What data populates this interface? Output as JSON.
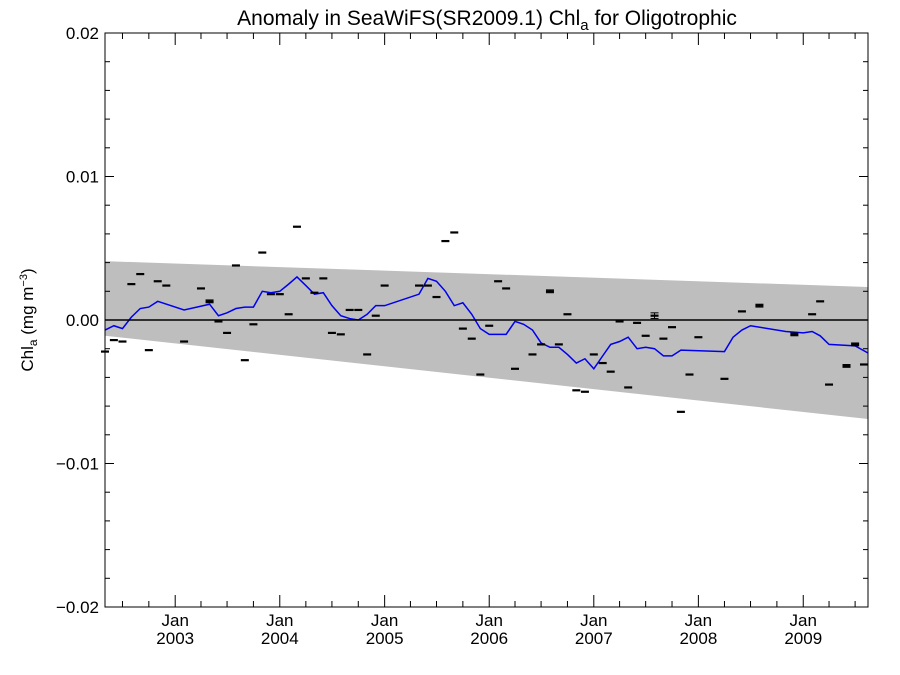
{
  "chart_data": {
    "type": "scatter",
    "title": {
      "prefix": "Anomaly in SeaWiFS(SR2009.1) Chl",
      "subscript": "a",
      "suffix": " for Oligotrophic"
    },
    "ylabel": {
      "main": "Chl",
      "subscript": "a",
      "units": " (mg m",
      "superscript": "−3",
      "close": ")"
    },
    "xlim": [
      "2002-05-01",
      "2009-08-15"
    ],
    "ylim": [
      -0.02,
      0.02
    ],
    "x_ticks": [
      {
        "month": "Jan",
        "year": "2003",
        "date": "2003-01-01"
      },
      {
        "month": "Jan",
        "year": "2004",
        "date": "2004-01-01"
      },
      {
        "month": "Jan",
        "year": "2005",
        "date": "2005-01-01"
      },
      {
        "month": "Jan",
        "year": "2006",
        "date": "2006-01-01"
      },
      {
        "month": "Jan",
        "year": "2007",
        "date": "2007-01-01"
      },
      {
        "month": "Jan",
        "year": "2008",
        "date": "2008-01-01"
      },
      {
        "month": "Jan",
        "year": "2009",
        "date": "2009-01-01"
      }
    ],
    "y_ticks": [
      {
        "label": "0.02",
        "value": 0.02
      },
      {
        "label": "0.01",
        "value": 0.01
      },
      {
        "label": "0.00",
        "value": 0.0
      },
      {
        "label": "−0.01",
        "value": -0.01
      },
      {
        "label": "−0.02",
        "value": -0.02
      }
    ],
    "zero_line": 0.0,
    "band": {
      "color": "#bebebe",
      "upper": [
        {
          "x": "2002-05-01",
          "y": 0.0041
        },
        {
          "x": "2009-08-15",
          "y": 0.0023
        }
      ],
      "lower": [
        {
          "x": "2002-05-01",
          "y": -0.0011
        },
        {
          "x": "2009-08-15",
          "y": -0.0069
        }
      ]
    },
    "line": {
      "color": "#0000ee",
      "points": [
        {
          "x": "2002-05-01",
          "y": -0.0007
        },
        {
          "x": "2002-06-01",
          "y": -0.0004
        },
        {
          "x": "2002-07-01",
          "y": -0.0006
        },
        {
          "x": "2002-08-01",
          "y": 0.0002
        },
        {
          "x": "2002-09-01",
          "y": 0.0008
        },
        {
          "x": "2002-10-01",
          "y": 0.0009
        },
        {
          "x": "2002-11-01",
          "y": 0.0013
        },
        {
          "x": "2003-02-01",
          "y": 0.0007
        },
        {
          "x": "2003-05-01",
          "y": 0.0011
        },
        {
          "x": "2003-06-01",
          "y": 0.0003
        },
        {
          "x": "2003-07-01",
          "y": 0.0005
        },
        {
          "x": "2003-08-01",
          "y": 0.0008
        },
        {
          "x": "2003-09-01",
          "y": 0.0009
        },
        {
          "x": "2003-10-01",
          "y": 0.0009
        },
        {
          "x": "2003-11-01",
          "y": 0.002
        },
        {
          "x": "2003-12-01",
          "y": 0.0019
        },
        {
          "x": "2004-01-01",
          "y": 0.002
        },
        {
          "x": "2004-02-01",
          "y": 0.0025
        },
        {
          "x": "2004-03-01",
          "y": 0.003
        },
        {
          "x": "2004-04-01",
          "y": 0.0024
        },
        {
          "x": "2004-05-01",
          "y": 0.0018
        },
        {
          "x": "2004-06-01",
          "y": 0.0019
        },
        {
          "x": "2004-07-01",
          "y": 0.001
        },
        {
          "x": "2004-08-01",
          "y": 0.0003
        },
        {
          "x": "2004-09-01",
          "y": 0.0001
        },
        {
          "x": "2004-10-01",
          "y": 0.0
        },
        {
          "x": "2004-11-01",
          "y": 0.0004
        },
        {
          "x": "2004-12-01",
          "y": 0.001
        },
        {
          "x": "2005-01-01",
          "y": 0.001
        },
        {
          "x": "2005-05-01",
          "y": 0.0018
        },
        {
          "x": "2005-06-01",
          "y": 0.0029
        },
        {
          "x": "2005-07-01",
          "y": 0.0027
        },
        {
          "x": "2005-08-01",
          "y": 0.002
        },
        {
          "x": "2005-09-01",
          "y": 0.001
        },
        {
          "x": "2005-10-01",
          "y": 0.0012
        },
        {
          "x": "2005-11-01",
          "y": 0.0004
        },
        {
          "x": "2005-12-01",
          "y": -0.0006
        },
        {
          "x": "2006-01-01",
          "y": -0.001
        },
        {
          "x": "2006-02-01",
          "y": -0.001
        },
        {
          "x": "2006-03-01",
          "y": -0.001
        },
        {
          "x": "2006-04-01",
          "y": -0.0001
        },
        {
          "x": "2006-05-01",
          "y": -0.0003
        },
        {
          "x": "2006-06-01",
          "y": -0.0007
        },
        {
          "x": "2006-07-01",
          "y": -0.0016
        },
        {
          "x": "2006-08-01",
          "y": -0.0019
        },
        {
          "x": "2006-09-01",
          "y": -0.0019
        },
        {
          "x": "2006-10-01",
          "y": -0.0024
        },
        {
          "x": "2006-11-01",
          "y": -0.003
        },
        {
          "x": "2006-12-01",
          "y": -0.0027
        },
        {
          "x": "2007-01-01",
          "y": -0.0034
        },
        {
          "x": "2007-02-01",
          "y": -0.0025
        },
        {
          "x": "2007-03-01",
          "y": -0.0017
        },
        {
          "x": "2007-04-01",
          "y": -0.0015
        },
        {
          "x": "2007-05-01",
          "y": -0.0012
        },
        {
          "x": "2007-06-01",
          "y": -0.002
        },
        {
          "x": "2007-07-01",
          "y": -0.0019
        },
        {
          "x": "2007-08-01",
          "y": -0.002
        },
        {
          "x": "2007-09-01",
          "y": -0.0025
        },
        {
          "x": "2007-10-01",
          "y": -0.0025
        },
        {
          "x": "2007-11-01",
          "y": -0.0021
        },
        {
          "x": "2008-04-01",
          "y": -0.0022
        },
        {
          "x": "2008-05-01",
          "y": -0.0012
        },
        {
          "x": "2008-06-01",
          "y": -0.0007
        },
        {
          "x": "2008-07-01",
          "y": -0.0004
        },
        {
          "x": "2008-11-01",
          "y": -0.0008
        },
        {
          "x": "2009-01-01",
          "y": -0.0009
        },
        {
          "x": "2009-02-01",
          "y": -0.0008
        },
        {
          "x": "2009-03-01",
          "y": -0.0011
        },
        {
          "x": "2009-04-01",
          "y": -0.0017
        },
        {
          "x": "2009-07-01",
          "y": -0.0018
        },
        {
          "x": "2009-08-15",
          "y": -0.0023
        }
      ]
    },
    "points": [
      {
        "x": "2002-05-01",
        "y": -0.0022,
        "err": 5e-05
      },
      {
        "x": "2002-06-01",
        "y": -0.0014,
        "err": 5e-05
      },
      {
        "x": "2002-07-01",
        "y": -0.0015,
        "err": 5e-05
      },
      {
        "x": "2002-08-01",
        "y": 0.0025,
        "err": 5e-05
      },
      {
        "x": "2002-09-01",
        "y": 0.0032,
        "err": 5e-05
      },
      {
        "x": "2002-10-01",
        "y": -0.0021,
        "err": 5e-05
      },
      {
        "x": "2002-11-01",
        "y": 0.0027,
        "err": 5e-05
      },
      {
        "x": "2002-12-01",
        "y": 0.0024,
        "err": 5e-05
      },
      {
        "x": "2003-02-01",
        "y": -0.0015,
        "err": 5e-05
      },
      {
        "x": "2003-04-01",
        "y": 0.0022,
        "err": 5e-05
      },
      {
        "x": "2003-05-01",
        "y": 0.0013,
        "err": 0.0001
      },
      {
        "x": "2003-06-01",
        "y": -0.0001,
        "err": 5e-05
      },
      {
        "x": "2003-07-01",
        "y": -0.0009,
        "err": 5e-05
      },
      {
        "x": "2003-08-01",
        "y": 0.0038,
        "err": 5e-05
      },
      {
        "x": "2003-09-01",
        "y": -0.0028,
        "err": 5e-05
      },
      {
        "x": "2003-10-01",
        "y": -0.0003,
        "err": 5e-05
      },
      {
        "x": "2003-11-01",
        "y": 0.0047,
        "err": 5e-05
      },
      {
        "x": "2003-12-01",
        "y": 0.0018,
        "err": 5e-05
      },
      {
        "x": "2004-01-01",
        "y": 0.0018,
        "err": 5e-05
      },
      {
        "x": "2004-02-01",
        "y": 0.0004,
        "err": 5e-05
      },
      {
        "x": "2004-03-01",
        "y": 0.0065,
        "err": 5e-05
      },
      {
        "x": "2004-04-01",
        "y": 0.0029,
        "err": 5e-05
      },
      {
        "x": "2004-05-01",
        "y": 0.0019,
        "err": 5e-05
      },
      {
        "x": "2004-06-01",
        "y": 0.0029,
        "err": 5e-05
      },
      {
        "x": "2004-07-01",
        "y": -0.0009,
        "err": 5e-05
      },
      {
        "x": "2004-08-01",
        "y": -0.001,
        "err": 5e-05
      },
      {
        "x": "2004-09-01",
        "y": 0.0007,
        "err": 5e-05
      },
      {
        "x": "2004-10-01",
        "y": 0.0007,
        "err": 5e-05
      },
      {
        "x": "2004-11-01",
        "y": -0.0024,
        "err": 5e-05
      },
      {
        "x": "2004-12-01",
        "y": 0.0003,
        "err": 5e-05
      },
      {
        "x": "2005-01-01",
        "y": 0.0024,
        "err": 5e-05
      },
      {
        "x": "2005-05-01",
        "y": 0.0024,
        "err": 5e-05
      },
      {
        "x": "2005-06-01",
        "y": 0.0024,
        "err": 5e-05
      },
      {
        "x": "2005-07-01",
        "y": 0.0016,
        "err": 5e-05
      },
      {
        "x": "2005-08-01",
        "y": 0.0055,
        "err": 5e-05
      },
      {
        "x": "2005-09-01",
        "y": 0.0061,
        "err": 5e-05
      },
      {
        "x": "2005-10-01",
        "y": -0.0006,
        "err": 5e-05
      },
      {
        "x": "2005-11-01",
        "y": -0.0013,
        "err": 5e-05
      },
      {
        "x": "2005-12-01",
        "y": -0.0038,
        "err": 5e-05
      },
      {
        "x": "2006-01-01",
        "y": -0.0004,
        "err": 5e-05
      },
      {
        "x": "2006-02-01",
        "y": 0.0027,
        "err": 5e-05
      },
      {
        "x": "2006-03-01",
        "y": 0.0022,
        "err": 5e-05
      },
      {
        "x": "2006-04-01",
        "y": -0.0034,
        "err": 5e-05
      },
      {
        "x": "2006-06-01",
        "y": -0.0024,
        "err": 5e-05
      },
      {
        "x": "2006-07-01",
        "y": -0.0017,
        "err": 5e-05
      },
      {
        "x": "2006-08-01",
        "y": 0.002,
        "err": 0.0001
      },
      {
        "x": "2006-09-01",
        "y": -0.0017,
        "err": 5e-05
      },
      {
        "x": "2006-10-01",
        "y": 0.0004,
        "err": 5e-05
      },
      {
        "x": "2006-11-01",
        "y": -0.0049,
        "err": 5e-05
      },
      {
        "x": "2006-12-01",
        "y": -0.005,
        "err": 5e-05
      },
      {
        "x": "2007-01-01",
        "y": -0.0024,
        "err": 5e-05
      },
      {
        "x": "2007-02-01",
        "y": -0.003,
        "err": 5e-05
      },
      {
        "x": "2007-03-01",
        "y": -0.0036,
        "err": 5e-05
      },
      {
        "x": "2007-04-01",
        "y": -0.0001,
        "err": 5e-05
      },
      {
        "x": "2007-05-01",
        "y": -0.0047,
        "err": 5e-05
      },
      {
        "x": "2007-06-01",
        "y": -0.0002,
        "err": 5e-05
      },
      {
        "x": "2007-07-01",
        "y": -0.0011,
        "err": 5e-05
      },
      {
        "x": "2007-08-01",
        "y": 0.0003,
        "err": 0.0002
      },
      {
        "x": "2007-09-01",
        "y": -0.0013,
        "err": 5e-05
      },
      {
        "x": "2007-10-01",
        "y": -0.0005,
        "err": 5e-05
      },
      {
        "x": "2007-11-01",
        "y": -0.0064,
        "err": 5e-05
      },
      {
        "x": "2007-12-01",
        "y": -0.0038,
        "err": 5e-05
      },
      {
        "x": "2008-01-01",
        "y": -0.0012,
        "err": 5e-05
      },
      {
        "x": "2008-04-01",
        "y": -0.0041,
        "err": 5e-05
      },
      {
        "x": "2008-06-01",
        "y": 0.0006,
        "err": 5e-05
      },
      {
        "x": "2008-08-01",
        "y": 0.001,
        "err": 0.0001
      },
      {
        "x": "2008-12-01",
        "y": -0.001,
        "err": 0.0001
      },
      {
        "x": "2009-02-01",
        "y": 0.0004,
        "err": 5e-05
      },
      {
        "x": "2009-03-01",
        "y": 0.0013,
        "err": 5e-05
      },
      {
        "x": "2009-04-01",
        "y": -0.0045,
        "err": 5e-05
      },
      {
        "x": "2009-06-01",
        "y": -0.0032,
        "err": 0.0001
      },
      {
        "x": "2009-07-01",
        "y": -0.0017,
        "err": 0.0001
      },
      {
        "x": "2009-08-01",
        "y": -0.0031,
        "err": 5e-05
      }
    ],
    "grid": false,
    "legend": "none"
  }
}
